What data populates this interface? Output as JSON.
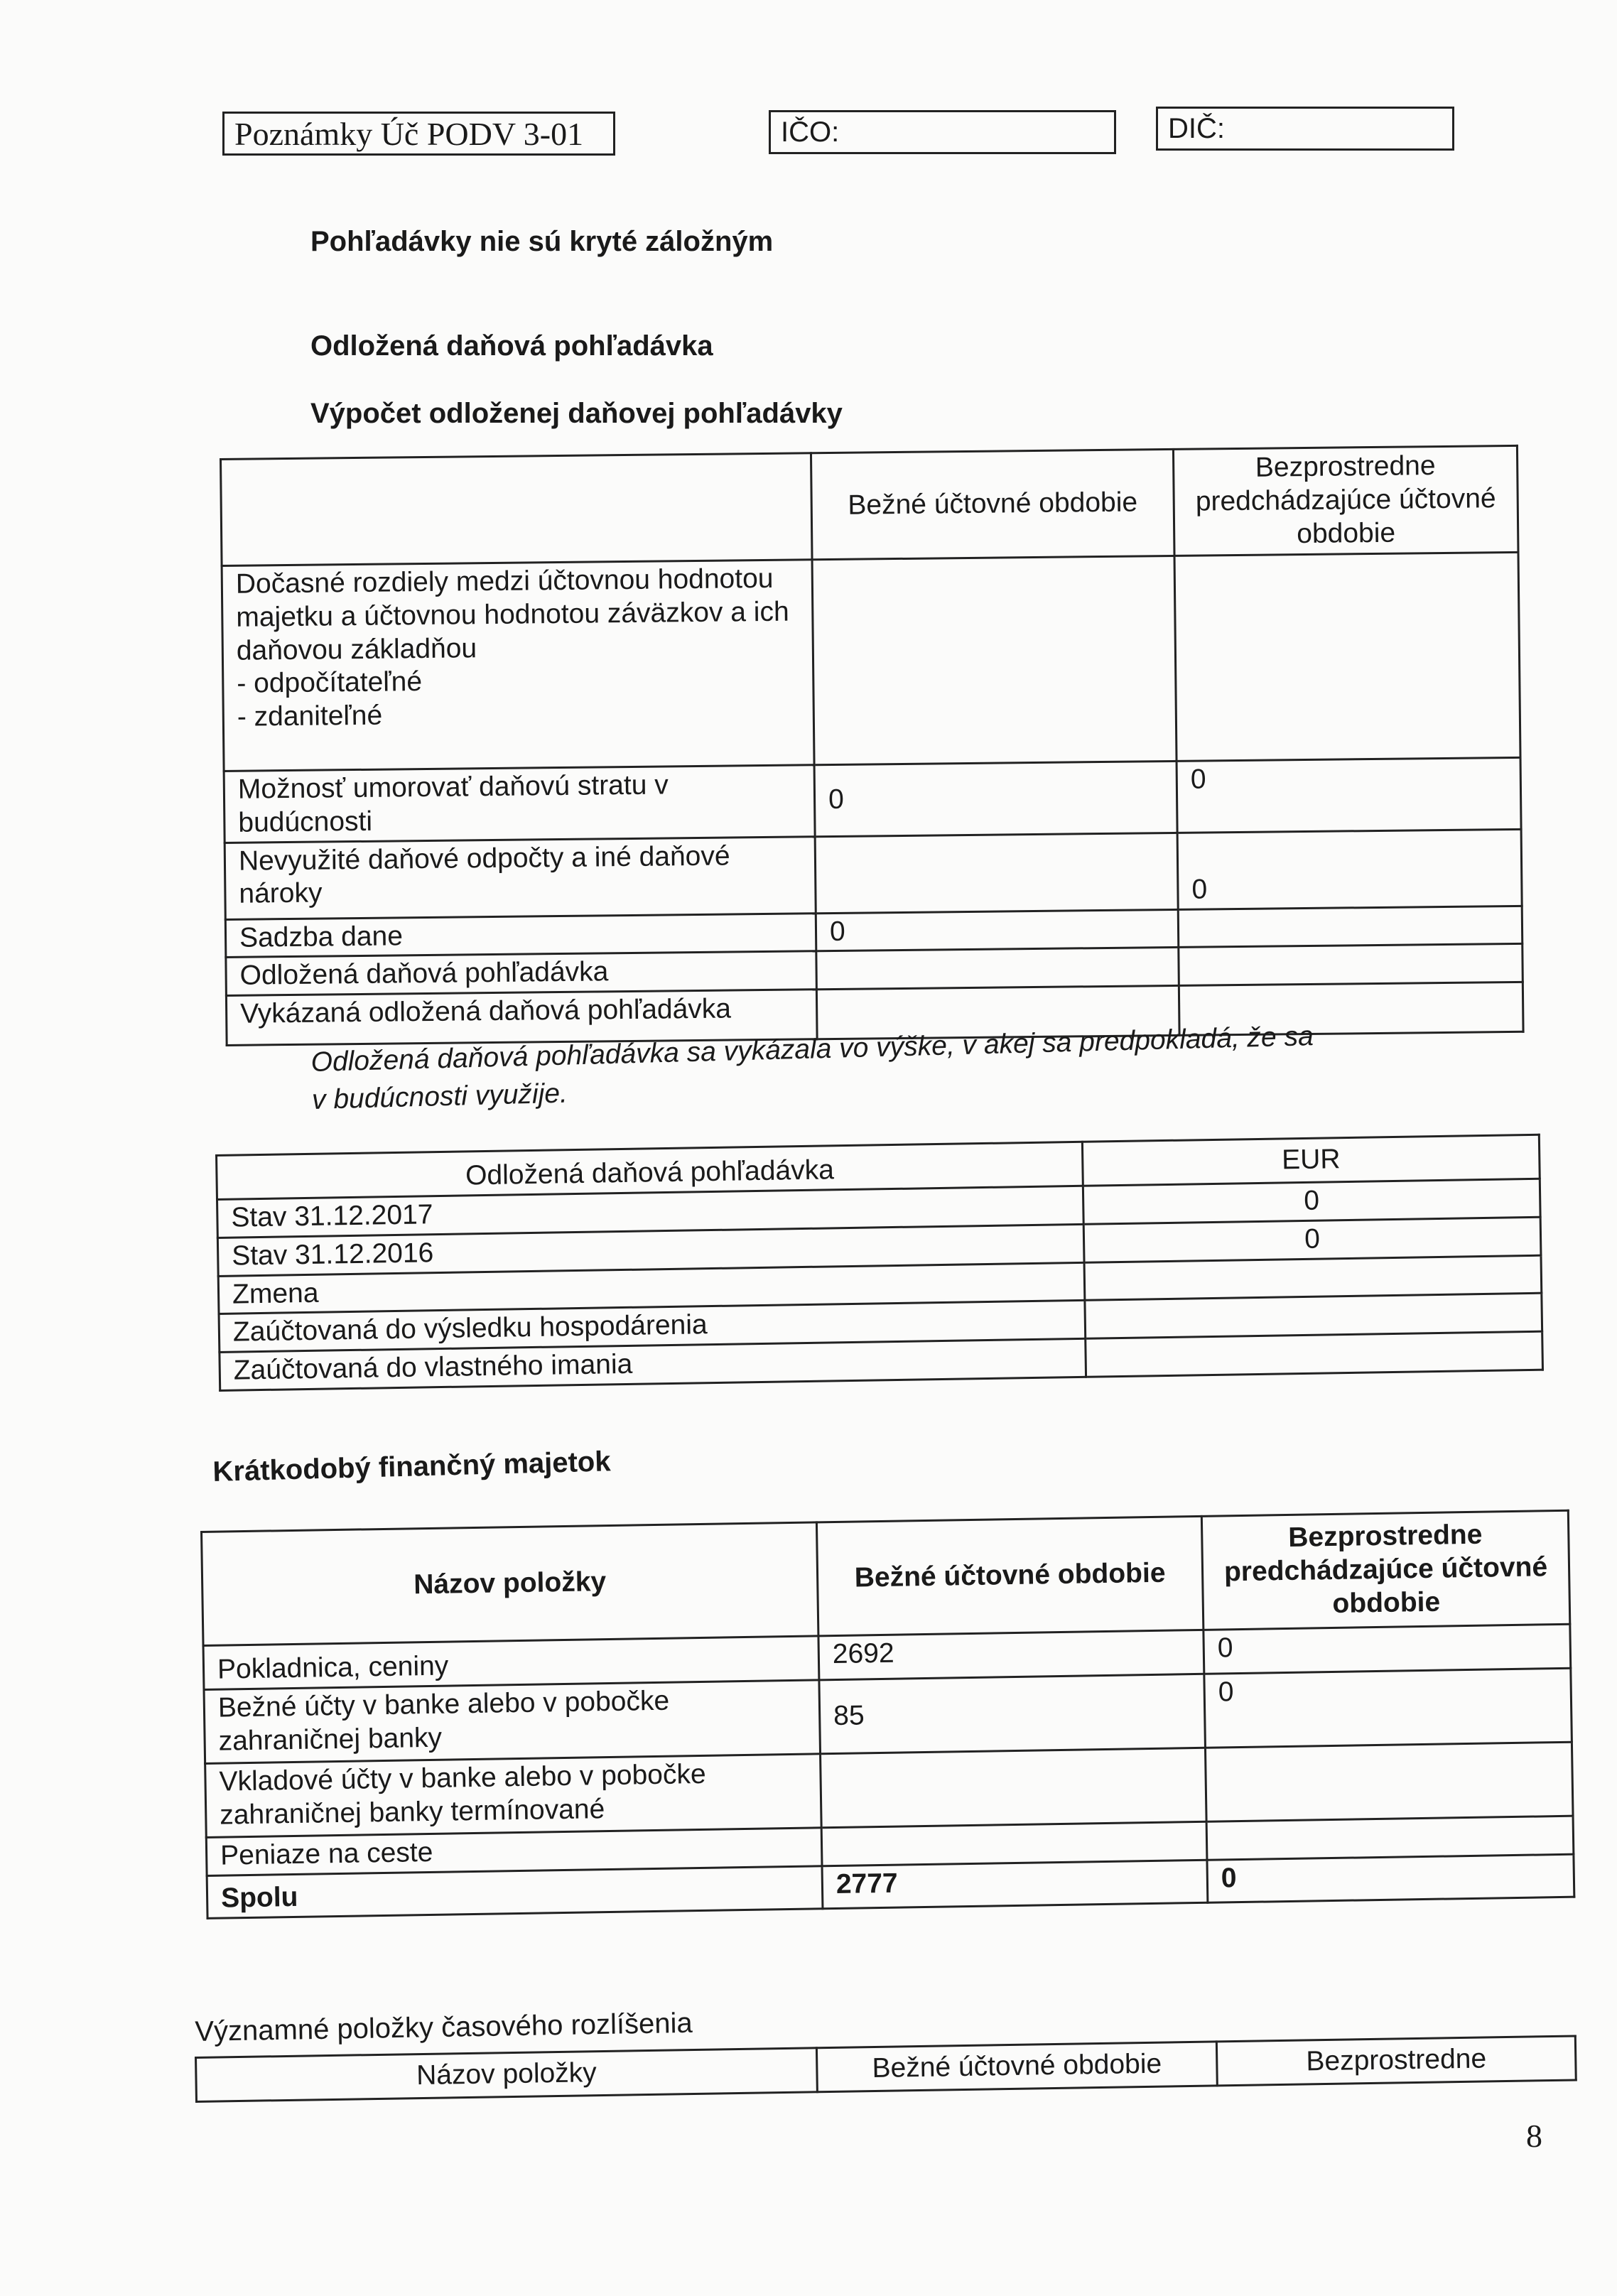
{
  "header": {
    "form_code": "Poznámky Úč PODV 3-01",
    "ico_label": "IČO:",
    "ico_value": "",
    "dic_label": "DIČ:",
    "dic_value": ""
  },
  "headings": {
    "receivables_note": "Pohľadávky nie sú kryté záložným",
    "deferred_tax": "Odložená daňová pohľadávka",
    "deferred_tax_calc": "Výpočet odloženej daňovej pohľadávky"
  },
  "deferred_tax_table": {
    "columns": [
      "",
      "Bežné účtovné obdobie",
      "Bezprostredne predchádzajúce účtovné obdobie"
    ],
    "rows": [
      {
        "label": "Dočasné rozdiely medzi účtovnou hodnotou majetku a účtovnou hodnotou záväzkov a ich daňovou základňou",
        "sub1": "- odpočítateľné",
        "sub2": "- zdaniteľné",
        "current": "",
        "previous": ""
      },
      {
        "label": "Možnosť umorovať daňovú stratu v budúcnosti",
        "current": "0",
        "previous": "0"
      },
      {
        "label": "Nevyužité daňové odpočty a iné daňové nároky",
        "current": "",
        "previous": "0"
      },
      {
        "label": "Sadzba dane",
        "current": "0",
        "previous": ""
      },
      {
        "label": "Odložená daňová pohľadávka",
        "current": "",
        "previous": ""
      },
      {
        "label": "Vykázaná odložená daňová pohľadávka",
        "current": "",
        "previous": ""
      }
    ]
  },
  "deferred_tax_note": {
    "line1": "Odložená daňová  pohľadávka sa vykázala vo výške, v akej sa predpokladá, že sa",
    "line2": "v budúcnosti využije."
  },
  "deferred_tax_movement": {
    "columns": [
      "Odložená daňová pohľadávka",
      "EUR"
    ],
    "rows": [
      {
        "label": "Stav 31.12.2017",
        "value": "0"
      },
      {
        "label": "Stav 31.12.2016",
        "value": "0"
      },
      {
        "label": "Zmena",
        "value": ""
      },
      {
        "label": "Zaúčtovaná do výsledku hospodárenia",
        "value": ""
      },
      {
        "label": "Zaúčtovaná do vlastného imania",
        "value": ""
      }
    ]
  },
  "short_term_assets": {
    "heading": "Krátkodobý finančný majetok",
    "columns": [
      "Názov položky",
      "Bežné účtovné obdobie",
      "Bezprostredne predchádzajúce účtovné obdobie"
    ],
    "rows": [
      {
        "label": "Pokladnica, ceniny",
        "current": "2692",
        "previous": "0"
      },
      {
        "label": "Bežné účty v banke alebo v pobočke zahraničnej banky",
        "current": "85",
        "previous": "0"
      },
      {
        "label": "Vkladové účty v banke alebo v pobočke zahraničnej banky termínované",
        "current": "",
        "previous": ""
      },
      {
        "label": "Peniaze na ceste",
        "current": "",
        "previous": ""
      }
    ],
    "total": {
      "label": "Spolu",
      "current": "2777",
      "previous": "0"
    }
  },
  "accruals": {
    "heading": "Významné položky časového rozlíšenia",
    "columns": [
      "Názov položky",
      "Bežné účtovné obdobie",
      "Bezprostredne"
    ]
  },
  "page_number": "8"
}
